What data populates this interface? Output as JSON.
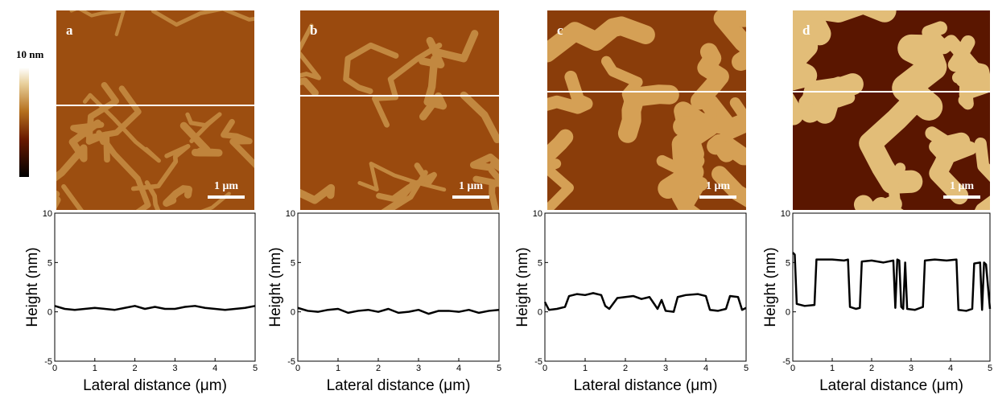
{
  "colorbar": {
    "label": "10 nm"
  },
  "images": [
    {
      "label": "a",
      "scale_bar": "1 μm"
    },
    {
      "label": "b",
      "scale_bar": "1 μm"
    },
    {
      "label": "c",
      "scale_bar": "1 μm"
    },
    {
      "label": "d",
      "scale_bar": "1 μm"
    }
  ],
  "chart_data": [
    {
      "type": "line",
      "xlabel": "Lateral distance (μm)",
      "ylabel": "Height (nm)",
      "color": "#000000",
      "x": [
        0,
        0.25,
        0.5,
        0.75,
        1,
        1.25,
        1.5,
        1.75,
        2,
        2.25,
        2.5,
        2.75,
        3,
        3.25,
        3.5,
        3.75,
        4,
        4.25,
        4.5,
        4.75,
        5
      ],
      "values": [
        0.6,
        0.3,
        0.2,
        0.3,
        0.4,
        0.3,
        0.2,
        0.4,
        0.6,
        0.3,
        0.5,
        0.3,
        0.3,
        0.5,
        0.6,
        0.4,
        0.3,
        0.2,
        0.3,
        0.4,
        0.6
      ],
      "xlim": [
        0,
        5
      ],
      "ylim": [
        -5,
        10
      ],
      "xticks": [
        0,
        1,
        2,
        3,
        4,
        5
      ],
      "yticks": [
        -5,
        0,
        5,
        10
      ]
    },
    {
      "type": "line",
      "xlabel": "Lateral distance (μm)",
      "ylabel": "Height (nm)",
      "color": "#000000",
      "x": [
        0,
        0.25,
        0.5,
        0.75,
        1,
        1.25,
        1.5,
        1.75,
        2,
        2.25,
        2.5,
        2.75,
        3,
        3.25,
        3.5,
        3.75,
        4,
        4.25,
        4.5,
        4.75,
        5
      ],
      "values": [
        0.4,
        0.1,
        0.0,
        0.2,
        0.3,
        -0.1,
        0.1,
        0.2,
        0.0,
        0.3,
        -0.1,
        0.0,
        0.2,
        -0.2,
        0.1,
        0.1,
        0.0,
        0.2,
        -0.1,
        0.1,
        0.2
      ],
      "xlim": [
        0,
        5
      ],
      "ylim": [
        -5,
        10
      ],
      "xticks": [
        0,
        1,
        2,
        3,
        4,
        5
      ],
      "yticks": [
        -5,
        0,
        5,
        10
      ]
    },
    {
      "type": "line",
      "xlabel": "Lateral distance (μm)",
      "ylabel": "Height (nm)",
      "color": "#000000",
      "x": [
        0,
        0.1,
        0.3,
        0.5,
        0.6,
        0.8,
        1.0,
        1.2,
        1.4,
        1.5,
        1.6,
        1.8,
        2.0,
        2.2,
        2.4,
        2.6,
        2.7,
        2.8,
        2.9,
        3.0,
        3.2,
        3.3,
        3.5,
        3.8,
        4.0,
        4.1,
        4.3,
        4.5,
        4.6,
        4.8,
        4.9,
        5.0
      ],
      "values": [
        1.0,
        0.2,
        0.3,
        0.5,
        1.6,
        1.8,
        1.7,
        1.9,
        1.7,
        0.6,
        0.3,
        1.4,
        1.5,
        1.6,
        1.3,
        1.5,
        0.9,
        0.3,
        1.2,
        0.1,
        0.0,
        1.5,
        1.7,
        1.8,
        1.6,
        0.2,
        0.1,
        0.3,
        1.6,
        1.5,
        0.2,
        0.4
      ],
      "xlim": [
        0,
        5
      ],
      "ylim": [
        -5,
        10
      ],
      "xticks": [
        0,
        1,
        2,
        3,
        4,
        5
      ],
      "yticks": [
        -5,
        0,
        5,
        10
      ]
    },
    {
      "type": "line",
      "xlabel": "Lateral distance (μm)",
      "ylabel": "Height (nm)",
      "color": "#000000",
      "x": [
        0,
        0.05,
        0.1,
        0.3,
        0.55,
        0.6,
        0.8,
        1.0,
        1.3,
        1.4,
        1.45,
        1.6,
        1.7,
        1.75,
        2.0,
        2.3,
        2.55,
        2.6,
        2.65,
        2.7,
        2.75,
        2.8,
        2.85,
        2.9,
        3.1,
        3.3,
        3.35,
        3.6,
        3.9,
        4.15,
        4.2,
        4.4,
        4.55,
        4.6,
        4.75,
        4.8,
        4.85,
        4.9,
        5.0
      ],
      "values": [
        6.0,
        5.8,
        0.8,
        0.6,
        0.7,
        5.3,
        5.3,
        5.3,
        5.2,
        5.3,
        0.5,
        0.3,
        0.4,
        5.1,
        5.2,
        5.0,
        5.2,
        0.4,
        5.3,
        5.2,
        0.5,
        0.3,
        5.0,
        0.3,
        0.2,
        0.5,
        5.2,
        5.3,
        5.2,
        5.3,
        0.2,
        0.1,
        0.3,
        4.9,
        5.0,
        0.2,
        5.0,
        4.8,
        0.3
      ],
      "xlim": [
        0,
        5
      ],
      "ylim": [
        -5,
        10
      ],
      "xticks": [
        0,
        1,
        2,
        3,
        4,
        5
      ],
      "yticks": [
        -5,
        0,
        5,
        10
      ]
    }
  ]
}
